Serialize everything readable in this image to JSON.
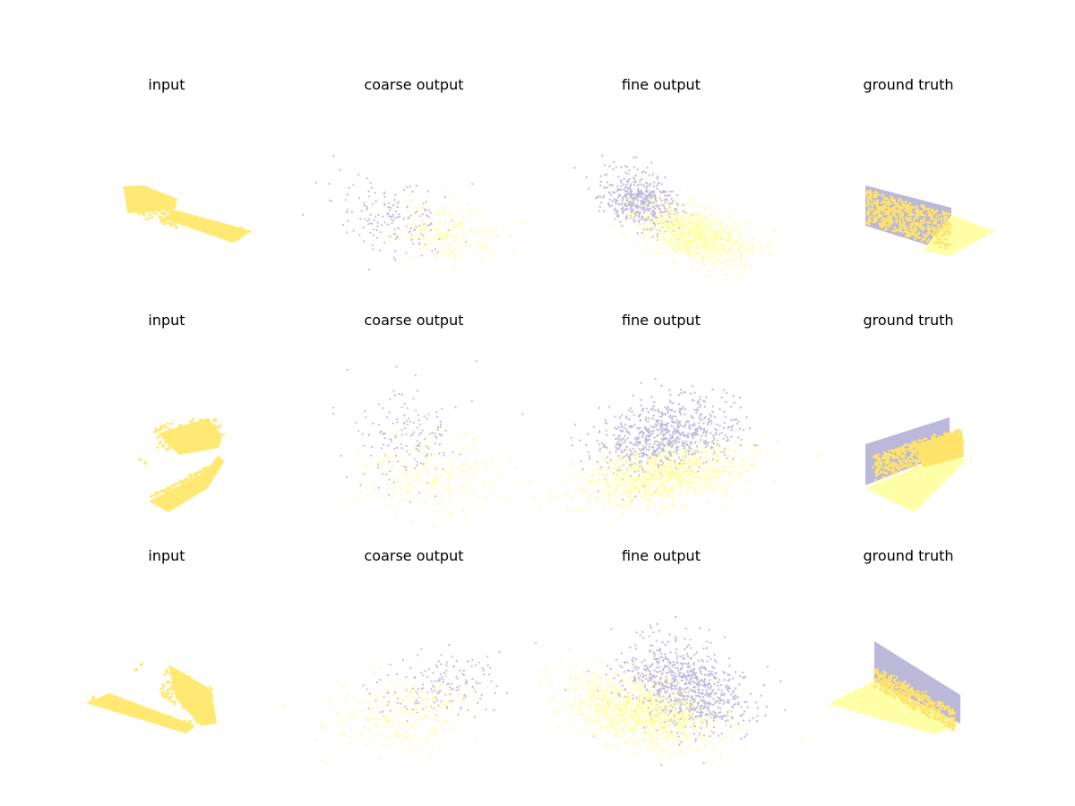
{
  "figure": {
    "rows": 3,
    "columns": 4
  },
  "colors": {
    "input": "#ffe973",
    "ground_truth_upper": "#bcb8d9",
    "ground_truth_lower": "#ffffa8",
    "ground_truth_points": "#ffe36a",
    "output_purple": "#bcb8dc",
    "output_yellow": "#ffffaa"
  },
  "chart_data": [
    {
      "type": "scatter",
      "title": "input",
      "kind": "point-cloud-3d",
      "row": 1,
      "column": 1
    },
    {
      "type": "scatter",
      "title": "coarse output",
      "kind": "point-cloud-3d",
      "row": 1,
      "column": 2
    },
    {
      "type": "scatter",
      "title": "fine output",
      "kind": "point-cloud-3d",
      "row": 1,
      "column": 3
    },
    {
      "type": "scatter",
      "title": "ground truth",
      "kind": "point-cloud-3d",
      "row": 1,
      "column": 4
    },
    {
      "type": "scatter",
      "title": "input",
      "kind": "point-cloud-3d",
      "row": 2,
      "column": 1
    },
    {
      "type": "scatter",
      "title": "coarse output",
      "kind": "point-cloud-3d",
      "row": 2,
      "column": 2
    },
    {
      "type": "scatter",
      "title": "fine output",
      "kind": "point-cloud-3d",
      "row": 2,
      "column": 3
    },
    {
      "type": "scatter",
      "title": "ground truth",
      "kind": "point-cloud-3d",
      "row": 2,
      "column": 4
    },
    {
      "type": "scatter",
      "title": "input",
      "kind": "point-cloud-3d",
      "row": 3,
      "column": 1
    },
    {
      "type": "scatter",
      "title": "coarse output",
      "kind": "point-cloud-3d",
      "row": 3,
      "column": 2
    },
    {
      "type": "scatter",
      "title": "fine output",
      "kind": "point-cloud-3d",
      "row": 3,
      "column": 3
    },
    {
      "type": "scatter",
      "title": "ground truth",
      "kind": "point-cloud-3d",
      "row": 3,
      "column": 4
    }
  ]
}
